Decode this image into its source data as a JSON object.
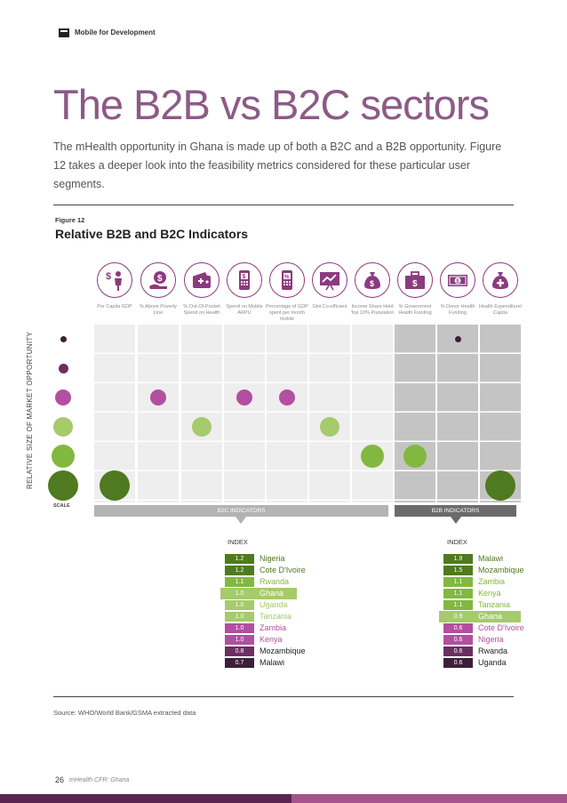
{
  "header": {
    "section": "Mobile for Development"
  },
  "title": "The B2B vs B2C sectors",
  "intro": "The mHealth opportunity in Ghana is made up of both a B2C and a B2B opportunity. Figure 12 takes a deeper look into the feasibility metrics considered for these particular user segments.",
  "figure": {
    "label": "Figure 12",
    "title": "Relative B2B and B2C Indicators",
    "y_axis_label": "RELATIVE SIZE OF MARKET OPPORTUNITY",
    "scale_label": "SCALE",
    "b2c_bar_label": "B2C INDICATORS",
    "b2b_bar_label": "B2B INDICATORS"
  },
  "chart_data": {
    "type": "scatter",
    "title": "Relative B2B and B2C Indicators",
    "ylabel": "RELATIVE SIZE OF MARKET OPPORTUNITY",
    "scale_levels": 6,
    "scale_colors": [
      "#3d1f3a",
      "#6b2f62",
      "#b34fa0",
      "#a5cb6a",
      "#82b83f",
      "#4f7a1f"
    ],
    "columns": [
      {
        "label": "Per Capita GDP",
        "group": "B2C",
        "icon": "person-dollar-icon",
        "level": 6
      },
      {
        "label": "% Above Poverty Line",
        "group": "B2C",
        "icon": "hand-coin-icon",
        "level": 3
      },
      {
        "label": "% Out-Of-Pocket Spend on Health",
        "group": "B2C",
        "icon": "wallet-health-icon",
        "level": 4
      },
      {
        "label": "Spend on Mobile ARPU",
        "group": "B2C",
        "icon": "phone-dollar-icon",
        "level": 3
      },
      {
        "label": "Percentage of GDP spent per month mobile",
        "group": "B2C",
        "icon": "phone-percent-icon",
        "level": 3
      },
      {
        "label": "Gini Co-efficient",
        "group": "B2C",
        "icon": "chart-board-icon",
        "level": 4
      },
      {
        "label": "Income Share Held Top 10% Population",
        "group": "B2C",
        "icon": "money-bag-icon",
        "level": 5
      },
      {
        "label": "% Government Health Funding",
        "group": "B2B",
        "icon": "briefcase-dollar-icon",
        "level": 5
      },
      {
        "label": "% Donor Health Funding",
        "group": "B2B",
        "icon": "banknote-icon",
        "level": 1
      },
      {
        "label": "Health Expenditure/ Capita",
        "group": "B2B",
        "icon": "bag-health-icon",
        "level": 6
      }
    ]
  },
  "b2c_index": {
    "title": "INDEX",
    "rows": [
      {
        "value": "1.2",
        "country": "Nigeria",
        "color": "#4f7a1f"
      },
      {
        "value": "1.2",
        "country": "Cote D'Ivoire",
        "color": "#4f7a1f"
      },
      {
        "value": "1.1",
        "country": "Rwanda",
        "color": "#82b83f"
      },
      {
        "value": "1.0",
        "country": "Ghana",
        "color": "#a5cb6a"
      },
      {
        "value": "1.0",
        "country": "Uganda",
        "color": "#a5cb6a"
      },
      {
        "value": "1.0",
        "country": "Tanzania",
        "color": "#a5cb6a"
      },
      {
        "value": "1.0",
        "country": "Zambia",
        "color": "#b34fa0"
      },
      {
        "value": "1.0",
        "country": "Kenya",
        "color": "#b34fa0"
      },
      {
        "value": "0.8",
        "country": "Mozambique",
        "color": "#6b2f62"
      },
      {
        "value": "0.7",
        "country": "Malawi",
        "color": "#3d1f3a"
      }
    ]
  },
  "b2b_index": {
    "title": "INDEX",
    "rows": [
      {
        "value": "1.9",
        "country": "Malawi",
        "color": "#4f7a1f"
      },
      {
        "value": "1.5",
        "country": "Mozambique",
        "color": "#4f7a1f"
      },
      {
        "value": "1.1",
        "country": "Zambia",
        "color": "#82b83f"
      },
      {
        "value": "1.1",
        "country": "Kenya",
        "color": "#82b83f"
      },
      {
        "value": "1.1",
        "country": "Tanzania",
        "color": "#82b83f"
      },
      {
        "value": "0.9",
        "country": "Ghana",
        "color": "#a5cb6a"
      },
      {
        "value": "0.6",
        "country": "Cote D'Ivoire",
        "color": "#b34fa0"
      },
      {
        "value": "0.6",
        "country": "Nigeria",
        "color": "#b34fa0"
      },
      {
        "value": "0.6",
        "country": "Rwanda",
        "color": "#6b2f62"
      },
      {
        "value": "0.6",
        "country": "Uganda",
        "color": "#3d1f3a"
      }
    ]
  },
  "source": "Source: WHO/World Bank/GSMA extracted data",
  "footer": {
    "page_number": "26",
    "text": "mHealth CFR: Ghana"
  }
}
